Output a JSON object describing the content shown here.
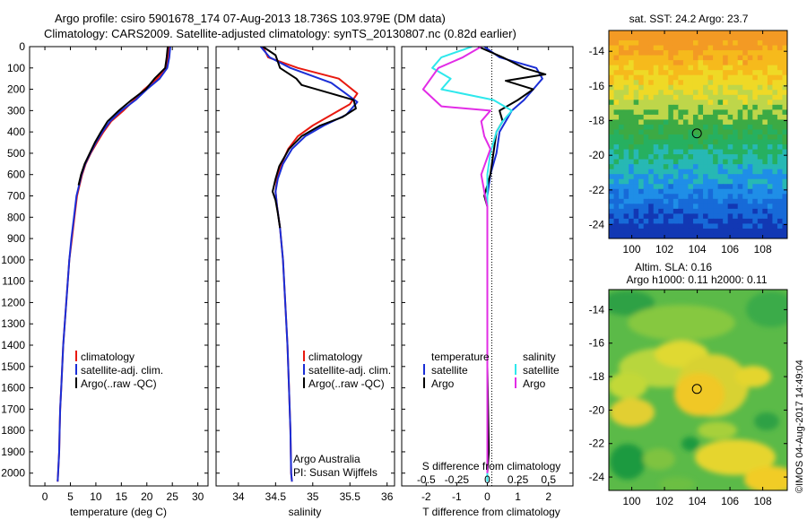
{
  "header": {
    "line1": "Argo profile: csiro 5901678_174 07-Aug-2013 18.736S 103.979E (DM data)",
    "line2": "Climatology: CARS2009. Satellite-adjusted climatology: synTS_20130807.nc (0.82d earlier)"
  },
  "side_label": "©IMOS 04-Aug-2017 14:49:04",
  "colors": {
    "climatology": "#e8190f",
    "satellite": "#1a2ed6",
    "argo": "#000000",
    "argo_s": "#e22ce6",
    "sat_s": "#2ee8ec"
  },
  "chart_data": [
    {
      "type": "line",
      "xlabel": "temperature (deg C)",
      "ylabel": "",
      "xlim": [
        -3,
        32
      ],
      "ylim": [
        2060,
        0
      ],
      "xticks": [
        0,
        5,
        10,
        15,
        20,
        25,
        30
      ],
      "yticks": [
        0,
        100,
        200,
        300,
        400,
        500,
        600,
        700,
        800,
        900,
        1000,
        1100,
        1200,
        1300,
        1400,
        1500,
        1600,
        1700,
        1800,
        1900,
        2000
      ],
      "legend": {
        "placement": "lower-middle",
        "entries": [
          "climatology",
          "satellite-adj. clim.",
          "Argo(..raw -QC)"
        ]
      },
      "series": [
        {
          "name": "climatology",
          "points": [
            [
              24.3,
              0
            ],
            [
              24.1,
              50
            ],
            [
              23.8,
              100
            ],
            [
              22,
              150
            ],
            [
              19.5,
              200
            ],
            [
              17.5,
              250
            ],
            [
              15.4,
              300
            ],
            [
              13,
              350
            ],
            [
              11.5,
              400
            ],
            [
              10.2,
              450
            ],
            [
              9,
              500
            ],
            [
              8,
              550
            ],
            [
              7.3,
              600
            ],
            [
              6.8,
              650
            ],
            [
              6.3,
              700
            ],
            [
              5.8,
              800
            ],
            [
              5.3,
              900
            ],
            [
              4.8,
              1000
            ],
            [
              4.5,
              1100
            ],
            [
              4.2,
              1200
            ],
            [
              3.9,
              1300
            ],
            [
              3.6,
              1400
            ],
            [
              3.4,
              1500
            ],
            [
              3.2,
              1600
            ],
            [
              3,
              1700
            ],
            [
              2.9,
              1800
            ],
            [
              2.8,
              1900
            ],
            [
              2.6,
              2000
            ],
            [
              2.5,
              2040
            ]
          ]
        },
        {
          "name": "satellite-adj. clim.",
          "points": [
            [
              24.6,
              0
            ],
            [
              24.4,
              50
            ],
            [
              24,
              100
            ],
            [
              22.5,
              150
            ],
            [
              20,
              200
            ],
            [
              17.8,
              250
            ],
            [
              15,
              300
            ],
            [
              12.8,
              350
            ],
            [
              11.3,
              400
            ],
            [
              10,
              450
            ],
            [
              8.9,
              500
            ],
            [
              7.9,
              550
            ],
            [
              7.2,
              600
            ],
            [
              6.7,
              650
            ],
            [
              6.2,
              700
            ],
            [
              5.7,
              800
            ],
            [
              5.2,
              900
            ],
            [
              4.8,
              1000
            ],
            [
              4.5,
              1100
            ],
            [
              4.2,
              1200
            ],
            [
              3.9,
              1300
            ],
            [
              3.6,
              1400
            ],
            [
              3.4,
              1500
            ],
            [
              3.2,
              1600
            ],
            [
              3,
              1700
            ],
            [
              2.9,
              1800
            ],
            [
              2.8,
              1900
            ],
            [
              2.6,
              2000
            ],
            [
              2.5,
              2040
            ]
          ]
        },
        {
          "name": "Argo(..raw -QC)",
          "points": [
            [
              24.1,
              0
            ],
            [
              23.9,
              50
            ],
            [
              23.6,
              100
            ],
            [
              21.5,
              150
            ],
            [
              19.8,
              200
            ],
            [
              17,
              250
            ],
            [
              14.5,
              300
            ],
            [
              12.3,
              350
            ],
            [
              11,
              400
            ],
            [
              9.8,
              450
            ],
            [
              8.8,
              500
            ],
            [
              7.8,
              550
            ],
            [
              7.1,
              600
            ],
            [
              6.6,
              650
            ]
          ]
        }
      ]
    },
    {
      "type": "line",
      "xlabel": "salinity",
      "ylabel": "",
      "xlim": [
        33.7,
        36.1
      ],
      "ylim": [
        2060,
        0
      ],
      "xticks": [
        34,
        34.5,
        35,
        35.5,
        36
      ],
      "legend": {
        "placement": "lower-right",
        "entries": [
          "climatology",
          "satellite-adj. clim.",
          "Argo(..raw -QC)"
        ]
      },
      "annotations": [
        "Argo Australia",
        "PI: Susan Wijffels"
      ],
      "series": [
        {
          "name": "climatology",
          "points": [
            [
              34.33,
              0
            ],
            [
              34.4,
              50
            ],
            [
              34.8,
              100
            ],
            [
              35.35,
              150
            ],
            [
              35.6,
              220
            ],
            [
              35.5,
              270
            ],
            [
              35.25,
              320
            ],
            [
              35,
              370
            ],
            [
              34.8,
              420
            ],
            [
              34.67,
              480
            ],
            [
              34.58,
              550
            ],
            [
              34.52,
              620
            ],
            [
              34.5,
              680
            ],
            [
              34.52,
              750
            ],
            [
              34.56,
              850
            ],
            [
              34.6,
              1000
            ],
            [
              34.63,
              1200
            ],
            [
              34.66,
              1400
            ],
            [
              34.68,
              1600
            ],
            [
              34.7,
              1800
            ],
            [
              34.71,
              2000
            ],
            [
              34.72,
              2040
            ]
          ]
        },
        {
          "name": "satellite-adj. clim.",
          "points": [
            [
              34.3,
              0
            ],
            [
              34.42,
              50
            ],
            [
              34.7,
              100
            ],
            [
              35.25,
              170
            ],
            [
              35.6,
              260
            ],
            [
              35.45,
              320
            ],
            [
              35.15,
              370
            ],
            [
              34.9,
              420
            ],
            [
              34.72,
              480
            ],
            [
              34.6,
              550
            ],
            [
              34.53,
              620
            ],
            [
              34.5,
              680
            ],
            [
              34.52,
              750
            ],
            [
              34.56,
              850
            ],
            [
              34.6,
              1000
            ],
            [
              34.63,
              1200
            ],
            [
              34.66,
              1400
            ],
            [
              34.68,
              1600
            ],
            [
              34.7,
              1800
            ],
            [
              34.71,
              2000
            ],
            [
              34.72,
              2040
            ]
          ]
        },
        {
          "name": "Argo(..raw -QC)",
          "points": [
            [
              34.33,
              0
            ],
            [
              34.5,
              40
            ],
            [
              34.56,
              100
            ],
            [
              34.78,
              150
            ],
            [
              34.85,
              180
            ],
            [
              35.25,
              220
            ],
            [
              35.55,
              250
            ],
            [
              35.58,
              290
            ],
            [
              35.4,
              330
            ],
            [
              35.1,
              370
            ],
            [
              34.85,
              420
            ],
            [
              34.68,
              480
            ],
            [
              34.55,
              560
            ],
            [
              34.5,
              620
            ],
            [
              34.46,
              680
            ],
            [
              34.5,
              720
            ],
            [
              34.53,
              780
            ],
            [
              34.56,
              850
            ]
          ]
        }
      ]
    },
    {
      "type": "line",
      "xlabel": "T difference from climatology",
      "top_xlabel": "S difference from climatology",
      "xlim": [
        -2.8,
        2.8
      ],
      "ylim": [
        2060,
        0
      ],
      "xticks": [
        -2,
        -1,
        0,
        1,
        2
      ],
      "top_xticks": [
        "-0.5",
        "-0.25",
        "0",
        "0.25",
        "0.5"
      ],
      "legend": {
        "placement": "lower-middle",
        "temperature_title": "temperature",
        "salinity_title": "salinity",
        "entries": [
          "satellite",
          "Argo",
          "satellite",
          "Argo"
        ]
      },
      "series": [
        {
          "name": "temperature satellite",
          "points": [
            [
              -0.1,
              0
            ],
            [
              0.4,
              50
            ],
            [
              1.6,
              100
            ],
            [
              1.8,
              150
            ],
            [
              1.5,
              200
            ],
            [
              1.2,
              250
            ],
            [
              0.8,
              300
            ],
            [
              0.6,
              350
            ],
            [
              0.4,
              400
            ],
            [
              0.3,
              500
            ],
            [
              0.1,
              600
            ],
            [
              0,
              700
            ],
            [
              0,
              800
            ],
            [
              0,
              900
            ],
            [
              0,
              1500
            ],
            [
              0,
              2040
            ]
          ]
        },
        {
          "name": "temperature Argo",
          "points": [
            [
              -0.3,
              0
            ],
            [
              0.5,
              50
            ],
            [
              1.2,
              100
            ],
            [
              1.9,
              130
            ],
            [
              0.6,
              160
            ],
            [
              1.5,
              200
            ],
            [
              1.0,
              250
            ],
            [
              0.4,
              300
            ],
            [
              0.5,
              350
            ],
            [
              0.3,
              400
            ],
            [
              0.2,
              500
            ],
            [
              0.1,
              600
            ],
            [
              -0.1,
              700
            ],
            [
              0,
              750
            ],
            [
              0,
              800
            ],
            [
              0,
              1500
            ],
            [
              0.05,
              1900
            ],
            [
              0,
              2000
            ]
          ]
        },
        {
          "name": "salinity satellite",
          "points": [
            [
              -0.5,
              0
            ],
            [
              -1.5,
              50
            ],
            [
              -1.8,
              100
            ],
            [
              -1.2,
              150
            ],
            [
              -1.5,
              200
            ],
            [
              0.2,
              250
            ],
            [
              0.8,
              300
            ],
            [
              0.5,
              350
            ],
            [
              0.3,
              400
            ],
            [
              0.2,
              450
            ],
            [
              0.1,
              500
            ],
            [
              0,
              600
            ],
            [
              0,
              700
            ],
            [
              0,
              800
            ],
            [
              0,
              1500
            ],
            [
              0,
              2040
            ]
          ]
        },
        {
          "name": "salinity Argo",
          "points": [
            [
              -0.2,
              0
            ],
            [
              -0.8,
              50
            ],
            [
              -1.6,
              100
            ],
            [
              -2.1,
              200
            ],
            [
              -1.5,
              280
            ],
            [
              0.1,
              300
            ],
            [
              -0.2,
              350
            ],
            [
              -0.1,
              420
            ],
            [
              0.1,
              480
            ],
            [
              0,
              520
            ],
            [
              -0.2,
              600
            ],
            [
              -0.1,
              680
            ],
            [
              0,
              750
            ],
            [
              0,
              800
            ],
            [
              0,
              1500
            ],
            [
              0,
              2000
            ]
          ]
        }
      ]
    },
    {
      "type": "heatmap",
      "title": "sat. SST: 24.2  Argo: 23.7",
      "xlim": [
        98.6,
        109.5
      ],
      "ylim": [
        -24.8,
        -12.8
      ],
      "xticks": [
        100,
        102,
        104,
        106,
        108
      ],
      "yticks": [
        -14,
        -16,
        -18,
        -20,
        -22,
        -24
      ],
      "marker": {
        "lon": 103.979,
        "lat": -18.736
      },
      "bands_north_to_south": [
        "#f39a24",
        "#f6ba1c",
        "#efd926",
        "#bed64a",
        "#3caa44",
        "#26b060",
        "#27b8b4",
        "#1f8ee7",
        "#176ad8",
        "#1238b4"
      ]
    },
    {
      "type": "heatmap",
      "title": "Altim. SLA: 0.16",
      "subtitle": "Argo h1000: 0.11 h2000: 0.11",
      "xlim": [
        98.6,
        109.5
      ],
      "ylim": [
        -24.8,
        -12.8
      ],
      "xticks": [
        100,
        102,
        104,
        106,
        108
      ],
      "yticks": [
        -14,
        -16,
        -18,
        -20,
        -22,
        -24
      ],
      "marker": {
        "lon": 103.979,
        "lat": -18.736
      }
    }
  ]
}
